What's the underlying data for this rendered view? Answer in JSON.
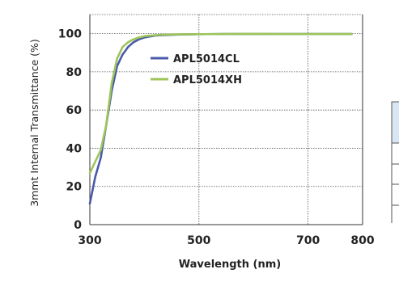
{
  "chart_data": {
    "type": "line",
    "title": "",
    "xlabel": "Wavelength (nm)",
    "ylabel": "3mmt Internal Transmittance (%)",
    "xlim": [
      300,
      800
    ],
    "ylim": [
      0,
      110
    ],
    "xticks": [
      "300",
      "500",
      "700",
      "800"
    ],
    "yticks": [
      "0",
      "20",
      "40",
      "60",
      "80",
      "100"
    ],
    "xtick_values": [
      300,
      500,
      700,
      800
    ],
    "ytick_values": [
      0,
      20,
      40,
      60,
      80,
      100
    ],
    "grid": true,
    "legend_position": "upper-center",
    "series": [
      {
        "name": "APL5014CL",
        "color": "#4a5aa8",
        "x": [
          300,
          310,
          320,
          330,
          340,
          350,
          360,
          370,
          380,
          390,
          400,
          420,
          440,
          460,
          500,
          550,
          600,
          650,
          700,
          750,
          780
        ],
        "y": [
          11,
          25,
          35,
          52,
          70,
          83,
          89,
          93,
          95.5,
          97,
          98,
          99,
          99.3,
          99.5,
          99.7,
          99.8,
          99.8,
          99.8,
          99.8,
          99.8,
          99.8
        ]
      },
      {
        "name": "APL5014XH",
        "color": "#9dc55a",
        "x": [
          300,
          310,
          320,
          330,
          340,
          350,
          360,
          370,
          380,
          390,
          400,
          420,
          440,
          460,
          500,
          550,
          600,
          650,
          700,
          750,
          780
        ],
        "y": [
          27,
          33,
          39,
          52,
          74,
          87,
          93,
          95.5,
          97,
          98,
          98.7,
          99.2,
          99.5,
          99.6,
          99.7,
          99.8,
          99.9,
          99.8,
          99.8,
          99.8,
          99.8
        ]
      }
    ]
  }
}
